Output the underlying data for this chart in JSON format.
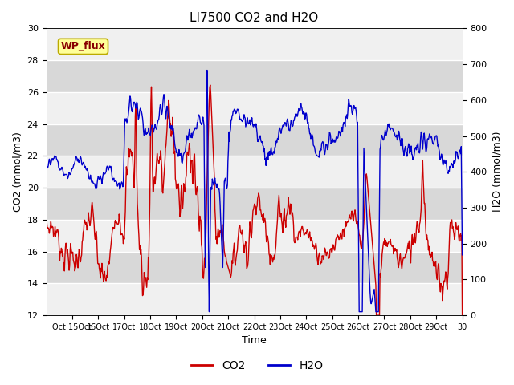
{
  "title": "LI7500 CO2 and H2O",
  "xlabel": "Time",
  "ylabel_left": "CO2 (mmol/m3)",
  "ylabel_right": "H2O (mmol/m3)",
  "annotation": "WP_flux",
  "co2_ylim": [
    12,
    30
  ],
  "h2o_ylim": [
    0,
    800
  ],
  "co2_yticks": [
    12,
    14,
    16,
    18,
    20,
    22,
    24,
    26,
    28,
    30
  ],
  "h2o_yticks": [
    0,
    100,
    200,
    300,
    400,
    500,
    600,
    700,
    800
  ],
  "xtick_labels": [
    "Oct 15Oct",
    "16Oct",
    "17Oct",
    "18Oct",
    "19Oct",
    "20Oct",
    "21Oct",
    "22Oct",
    "23Oct",
    "24Oct",
    "25Oct",
    "26Oct",
    "27Oct",
    "28Oct",
    "29Oct",
    "30"
  ],
  "co2_color": "#cc0000",
  "h2o_color": "#0000cc",
  "bg_color_light": "#f0f0f0",
  "bg_color_dark": "#d8d8d8",
  "grid_color": "#ffffff",
  "annotation_fg": "#880000",
  "annotation_bg": "#ffff99",
  "annotation_border": "#bbaa00",
  "n_points": 800,
  "seed": 7
}
